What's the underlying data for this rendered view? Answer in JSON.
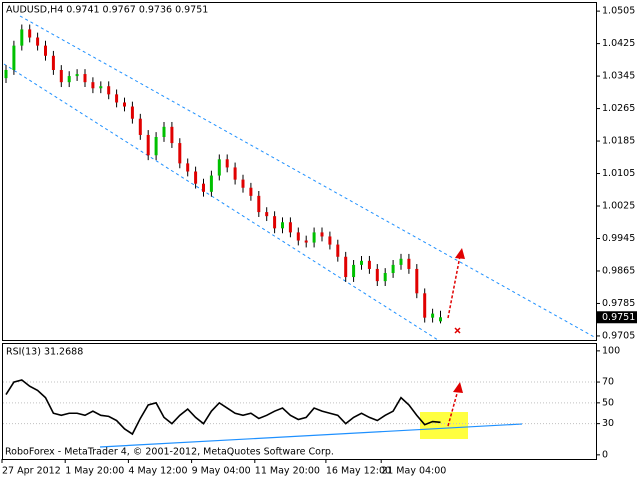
{
  "chart_data": [
    {
      "type": "candlestick",
      "title": "AUDUSD,H4  0.9741 0.9767 0.9736 0.9751",
      "categories": [
        "27 Apr 2012",
        null,
        null,
        null,
        null,
        null,
        null,
        null,
        "1 May 20:00",
        null,
        null,
        null,
        null,
        null,
        null,
        null,
        "4 May 12:00",
        null,
        null,
        null,
        null,
        null,
        null,
        null,
        "9 May 04:00",
        null,
        null,
        null,
        null,
        null,
        null,
        null,
        "11 May 20:00",
        null,
        null,
        null,
        null,
        null,
        null,
        null,
        null,
        "16 May 12:00",
        null,
        null,
        null,
        null,
        null,
        null,
        "21 May 04:00",
        null,
        null,
        null,
        null,
        null,
        null,
        null
      ],
      "open": [
        1.034,
        1.036,
        1.042,
        1.046,
        1.044,
        1.042,
        1.0395,
        1.036,
        1.033,
        1.0345,
        1.035,
        1.033,
        1.0315,
        1.032,
        1.03,
        1.028,
        1.027,
        1.024,
        1.02,
        1.015,
        1.0195,
        1.022,
        1.018,
        1.013,
        1.011,
        1.008,
        1.006,
        1.01,
        1.014,
        1.012,
        1.009,
        1.007,
        1.005,
        1.001,
        1.0,
        0.997,
        0.9985,
        0.996,
        0.994,
        0.9935,
        0.996,
        0.995,
        0.993,
        0.99,
        0.985,
        0.988,
        0.989,
        0.987,
        0.984,
        0.986,
        0.988,
        0.9895,
        0.987,
        0.981,
        0.975,
        0.9741
      ],
      "high": [
        1.0372,
        1.0432,
        1.0472,
        1.0472,
        1.0452,
        1.0432,
        1.0407,
        1.0372,
        1.0357,
        1.0362,
        1.0362,
        1.0342,
        1.0332,
        1.0332,
        1.0312,
        1.0292,
        1.0282,
        1.0252,
        1.0212,
        1.0207,
        1.0232,
        1.0232,
        1.0192,
        1.0142,
        1.0122,
        1.0092,
        1.0112,
        1.0152,
        1.0152,
        1.0132,
        1.0102,
        1.0082,
        1.0062,
        1.0022,
        1.0012,
        0.9997,
        0.9997,
        0.9972,
        0.9952,
        0.9972,
        0.9972,
        0.9962,
        0.9942,
        0.9912,
        0.9892,
        0.9902,
        0.9902,
        0.9882,
        0.9872,
        0.9892,
        0.9907,
        0.9907,
        0.9882,
        0.9822,
        0.9772,
        0.9767
      ],
      "low": [
        1.0328,
        1.0348,
        1.0408,
        1.0428,
        1.0408,
        1.0383,
        1.0348,
        1.0318,
        1.0318,
        1.0333,
        1.0318,
        1.0303,
        1.0303,
        1.0288,
        1.0268,
        1.0258,
        1.0228,
        1.0188,
        1.0138,
        1.0138,
        1.0183,
        1.0168,
        1.0118,
        1.0098,
        1.0068,
        1.0048,
        1.0048,
        1.0088,
        1.0108,
        1.0078,
        1.0058,
        1.0038,
        0.9998,
        0.9988,
        0.9958,
        0.9958,
        0.9948,
        0.9928,
        0.9923,
        0.9923,
        0.9938,
        0.9918,
        0.9888,
        0.9838,
        0.9838,
        0.9868,
        0.9858,
        0.9828,
        0.9828,
        0.9848,
        0.9868,
        0.9858,
        0.9798,
        0.9738,
        0.9738,
        0.9736
      ],
      "close": [
        1.036,
        1.042,
        1.046,
        1.044,
        1.042,
        1.0395,
        1.036,
        1.033,
        1.0345,
        1.035,
        1.033,
        1.0315,
        1.032,
        1.03,
        1.028,
        1.027,
        1.024,
        1.02,
        1.015,
        1.0195,
        1.022,
        1.018,
        1.013,
        1.011,
        1.008,
        1.006,
        1.01,
        1.014,
        1.012,
        1.009,
        1.007,
        1.005,
        1.001,
        1.0,
        0.997,
        0.9985,
        0.996,
        0.994,
        0.9935,
        0.996,
        0.995,
        0.993,
        0.99,
        0.985,
        0.988,
        0.989,
        0.987,
        0.984,
        0.986,
        0.988,
        0.9895,
        0.987,
        0.981,
        0.975,
        0.976,
        0.9751
      ],
      "up_color": "#00c000",
      "down_color": "#e00000",
      "ylim": [
        0.9695,
        1.0525
      ],
      "yticks": [
        1.0505,
        1.0425,
        1.0345,
        1.0265,
        1.0185,
        1.0105,
        1.0025,
        0.9945,
        0.9865,
        0.9785,
        0.9705
      ]
    },
    {
      "type": "line",
      "title": "RSI(13) 31.2688",
      "color": "#000000",
      "values": [
        58,
        70,
        72,
        66,
        62,
        55,
        40,
        38,
        40,
        40,
        38,
        42,
        38,
        37,
        33,
        25,
        20,
        35,
        48,
        50,
        36,
        30,
        38,
        44,
        36,
        30,
        42,
        50,
        45,
        40,
        38,
        40,
        35,
        38,
        42,
        45,
        38,
        34,
        36,
        45,
        42,
        40,
        38,
        30,
        36,
        40,
        36,
        33,
        38,
        42,
        55,
        48,
        38,
        29,
        32,
        31.2688
      ],
      "ylim": [
        -4,
        106.6
      ],
      "yticks": [
        100,
        70,
        50,
        30,
        0
      ]
    }
  ],
  "footer": "RoboForex - MetaTrader 4, © 2001-2012, MetaQuotes Software Corp."
}
